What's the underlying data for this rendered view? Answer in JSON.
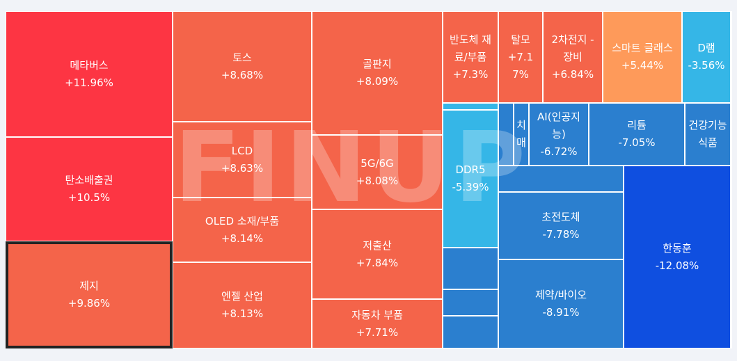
{
  "chart_data": {
    "type": "treemap",
    "watermark": "FINUP",
    "colors": {
      "strong_up": "#fd3543",
      "up": "#f4644a",
      "mild_up": "#fe9a5a",
      "down_light": "#35b6e7",
      "down": "#2b7fcf",
      "strong_down": "#0f4fe0"
    },
    "items": [
      {
        "name": "메타버스",
        "change": "+11.96%",
        "value": 11.96,
        "color": "strong_up"
      },
      {
        "name": "탄소배출권",
        "change": "+10.5%",
        "value": 10.5,
        "color": "strong_up"
      },
      {
        "name": "제지",
        "change": "+9.86%",
        "value": 9.86,
        "color": "up",
        "selected": true
      },
      {
        "name": "토스",
        "change": "+8.68%",
        "value": 8.68,
        "color": "up"
      },
      {
        "name": "LCD",
        "change": "+8.63%",
        "value": 8.63,
        "color": "up"
      },
      {
        "name": "OLED 소재/부품",
        "change": "+8.14%",
        "value": 8.14,
        "color": "up"
      },
      {
        "name": "엔젤 산업",
        "change": "+8.13%",
        "value": 8.13,
        "color": "up"
      },
      {
        "name": "골판지",
        "change": "+8.09%",
        "value": 8.09,
        "color": "up"
      },
      {
        "name": "5G/6G",
        "change": "+8.08%",
        "value": 8.08,
        "color": "up"
      },
      {
        "name": "저출산",
        "change": "+7.84%",
        "value": 7.84,
        "color": "up"
      },
      {
        "name": "자동차 부품",
        "change": "+7.71%",
        "value": 7.71,
        "color": "up"
      },
      {
        "name": "반도체 재료/부품",
        "change": "+7.3%",
        "value": 7.3,
        "color": "up"
      },
      {
        "name": "탈모",
        "change": "+7.17%",
        "value": 7.17,
        "color": "up"
      },
      {
        "name": "2차전지 - 장비",
        "change": "+6.84%",
        "value": 6.84,
        "color": "up"
      },
      {
        "name": "스마트 글래스",
        "change": "+5.44%",
        "value": 5.44,
        "color": "mild_up"
      },
      {
        "name": "D램",
        "change": "-3.56%",
        "value": -3.56,
        "color": "down_light"
      },
      {
        "name": "DDR5",
        "change": "-5.39%",
        "value": -5.39,
        "color": "down_light"
      },
      {
        "name": "치매",
        "change": "",
        "color": "down"
      },
      {
        "name": "AI(인공지능)",
        "change": "-6.72%",
        "value": -6.72,
        "color": "down"
      },
      {
        "name": "리튬",
        "change": "-7.05%",
        "value": -7.05,
        "color": "down"
      },
      {
        "name": "건강기능식품",
        "change": "",
        "color": "down"
      },
      {
        "name": "초전도체",
        "change": "-7.78%",
        "value": -7.78,
        "color": "down"
      },
      {
        "name": "제약/바이오",
        "change": "-8.91%",
        "value": -8.91,
        "color": "down"
      },
      {
        "name": "한동훈",
        "change": "-12.08%",
        "value": -12.08,
        "color": "strong_down"
      },
      {
        "name": "",
        "change": "",
        "color": "down_light"
      },
      {
        "name": "",
        "change": "",
        "color": "down"
      },
      {
        "name": "",
        "change": "",
        "color": "down"
      },
      {
        "name": "",
        "change": "",
        "color": "down"
      },
      {
        "name": "",
        "change": "",
        "color": "down"
      },
      {
        "name": "",
        "change": "",
        "color": "down"
      },
      {
        "name": "",
        "change": "",
        "color": "down"
      }
    ]
  }
}
